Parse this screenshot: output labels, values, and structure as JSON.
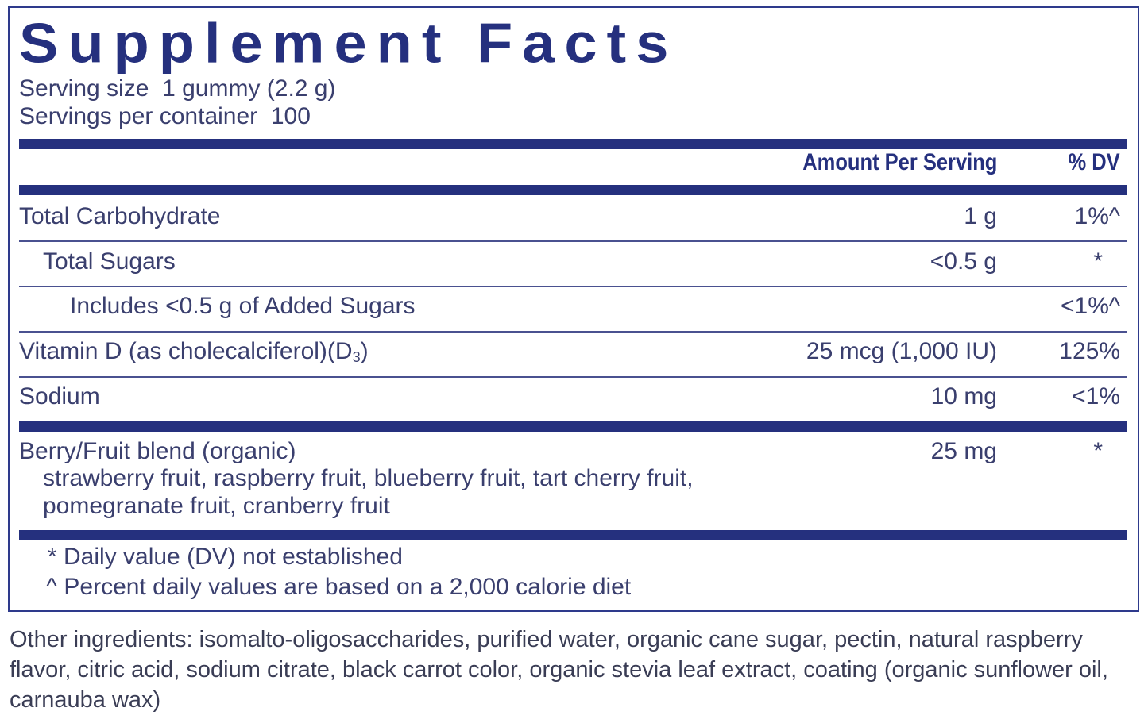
{
  "title": "Supplement Facts",
  "serving_size": "Serving size  1 gummy (2.2 g)",
  "servings_per_container": "Servings per container  100",
  "header": {
    "amount": "Amount Per Serving",
    "dv": "% DV"
  },
  "rows": [
    {
      "name": "Total Carbohydrate",
      "amount": "1 g",
      "dv": "1%^"
    },
    {
      "name": "Total Sugars",
      "amount": "<0.5 g",
      "dv": "*"
    },
    {
      "name": "Includes <0.5 g of Added Sugars",
      "amount": "",
      "dv": "<1%^"
    },
    {
      "name": "Vitamin D (as cholecalciferol)(D",
      "name_sub": "3",
      "name_end": ")",
      "amount": "25 mcg (1,000 IU)",
      "dv": "125%"
    },
    {
      "name": "Sodium",
      "amount": "10 mg",
      "dv": "<1%"
    }
  ],
  "blend": {
    "name": "Berry/Fruit blend (organic)",
    "amount": "25 mg",
    "dv": "*",
    "line1": "strawberry fruit, raspberry fruit, blueberry fruit, tart cherry fruit,",
    "line2": "pomegranate fruit, cranberry fruit"
  },
  "footnotes": [
    "* Daily value (DV) not established",
    "^ Percent daily values are based on a 2,000 calorie diet"
  ],
  "other_ingredients": "Other ingredients: isomalto-oligosaccharides, purified water, organic cane sugar, pectin, natural raspberry flavor, citric acid, sodium citrate, black carrot color, organic stevia leaf extract, coating (organic sunflower oil, carnauba wax)",
  "colors": {
    "brand_blue": "#25307e",
    "text": "#3a3f6e"
  }
}
